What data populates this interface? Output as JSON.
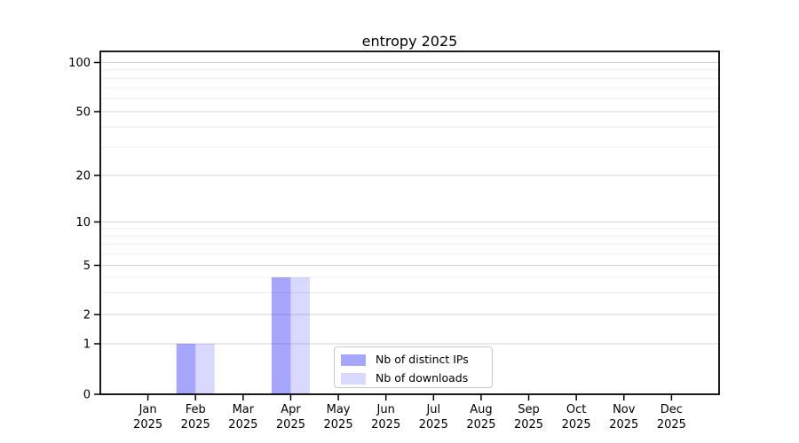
{
  "figure": {
    "background": "#ffffff",
    "axis_color": "#000000",
    "major_grid_color": "#d3d3d3",
    "minor_grid_color": "#ececec"
  },
  "chart_data": {
    "type": "bar",
    "title": "entropy 2025",
    "x_ticks": [
      {
        "label": "Jan",
        "sub": "2025"
      },
      {
        "label": "Feb",
        "sub": "2025"
      },
      {
        "label": "Mar",
        "sub": "2025"
      },
      {
        "label": "Apr",
        "sub": "2025"
      },
      {
        "label": "May",
        "sub": "2025"
      },
      {
        "label": "Jun",
        "sub": "2025"
      },
      {
        "label": "Jul",
        "sub": "2025"
      },
      {
        "label": "Aug",
        "sub": "2025"
      },
      {
        "label": "Sep",
        "sub": "2025"
      },
      {
        "label": "Oct",
        "sub": "2025"
      },
      {
        "label": "Nov",
        "sub": "2025"
      },
      {
        "label": "Dec",
        "sub": "2025"
      }
    ],
    "series": [
      {
        "name": "Nb of distinct IPs",
        "color": "#0000ff",
        "opacity": 0.35,
        "values": [
          0,
          1,
          0,
          4,
          0,
          0,
          0,
          0,
          0,
          0,
          0,
          0
        ]
      },
      {
        "name": "Nb of downloads",
        "color": "#0000ff",
        "opacity": 0.15,
        "values": [
          0,
          1,
          0,
          4,
          0,
          0,
          0,
          0,
          0,
          0,
          0,
          0
        ]
      }
    ],
    "y_axis": {
      "scale": "quasi-log",
      "major_ticks": [
        0,
        1,
        2,
        5,
        10,
        20,
        50,
        100
      ],
      "minor_ticks": [
        3,
        4,
        6,
        7,
        8,
        9,
        30,
        40,
        60,
        70,
        80,
        90
      ]
    },
    "legend_position": "bottom-center",
    "grid": true
  }
}
